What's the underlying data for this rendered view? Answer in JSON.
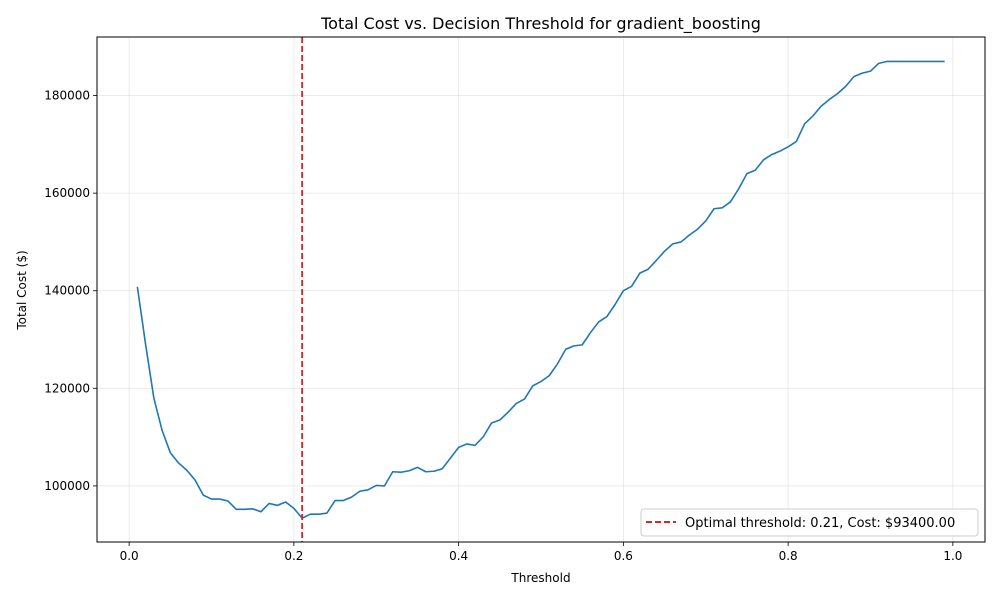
{
  "chart_data": {
    "type": "line",
    "title": "Total Cost vs. Decision Threshold for gradient_boosting",
    "xlabel": "Threshold",
    "ylabel": "Total Cost ($)",
    "xlim": [
      -0.039,
      1.039
    ],
    "ylim": [
      88500,
      192000
    ],
    "x_ticks": [
      0.0,
      0.2,
      0.4,
      0.6,
      0.8,
      1.0
    ],
    "x_tick_labels": [
      "0.0",
      "0.2",
      "0.4",
      "0.6",
      "0.8",
      "1.0"
    ],
    "y_ticks": [
      100000,
      120000,
      140000,
      160000,
      180000
    ],
    "y_tick_labels": [
      "100000",
      "120000",
      "140000",
      "160000",
      "180000"
    ],
    "grid": true,
    "legend_position": "lower-right",
    "colors": {
      "series": "#1f77b4",
      "optimal": "#d62728"
    },
    "series": [
      {
        "x": [
          0.01,
          0.02,
          0.03,
          0.04,
          0.05,
          0.06,
          0.07,
          0.08,
          0.09,
          0.1,
          0.11,
          0.12,
          0.13,
          0.14,
          0.15,
          0.16,
          0.17,
          0.18,
          0.19,
          0.2,
          0.21,
          0.22,
          0.23,
          0.24,
          0.25,
          0.26,
          0.27,
          0.28,
          0.29,
          0.3,
          0.31,
          0.32,
          0.33,
          0.34,
          0.35,
          0.36,
          0.37,
          0.38,
          0.39,
          0.4,
          0.41,
          0.42,
          0.43,
          0.44,
          0.45,
          0.46,
          0.47,
          0.48,
          0.49,
          0.5,
          0.51,
          0.52,
          0.53,
          0.54,
          0.55,
          0.56,
          0.57,
          0.58,
          0.59,
          0.6,
          0.61,
          0.62,
          0.63,
          0.64,
          0.65,
          0.66,
          0.67,
          0.68,
          0.69,
          0.7,
          0.71,
          0.72,
          0.73,
          0.74,
          0.75,
          0.76,
          0.77,
          0.78,
          0.79,
          0.8,
          0.81,
          0.82,
          0.83,
          0.84,
          0.85,
          0.86,
          0.87,
          0.88,
          0.89,
          0.9,
          0.91,
          0.92,
          0.93,
          0.94,
          0.95,
          0.96,
          0.97,
          0.98,
          0.99
        ],
        "values": [
          140800,
          129000,
          118000,
          111400,
          106800,
          104700,
          103200,
          101200,
          98100,
          97300,
          97300,
          96900,
          95200,
          95200,
          95300,
          94700,
          96400,
          96000,
          96700,
          95400,
          93400,
          94200,
          94200,
          94400,
          97000,
          97000,
          97700,
          98900,
          99200,
          100100,
          100000,
          102900,
          102800,
          103100,
          103800,
          102900,
          103000,
          103500,
          105700,
          107900,
          108600,
          108300,
          110100,
          112900,
          113500,
          115100,
          116900,
          117800,
          120500,
          121400,
          122600,
          125000,
          128000,
          128700,
          128900,
          131400,
          133600,
          134700,
          137200,
          140000,
          140900,
          143600,
          144400,
          146200,
          148100,
          149600,
          150000,
          151400,
          152600,
          154300,
          156800,
          157000,
          158200,
          160900,
          164000,
          164700,
          166800,
          167900,
          168600,
          169500,
          170600,
          174200,
          175800,
          177800,
          179200,
          180400,
          181900,
          183900,
          184600,
          185000,
          186600,
          187000,
          187000,
          187000,
          187000,
          187000,
          187000,
          187000,
          187000
        ]
      }
    ],
    "optimal": {
      "x": 0.21,
      "label": "Optimal threshold: 0.21, Cost: $93400.00"
    }
  }
}
